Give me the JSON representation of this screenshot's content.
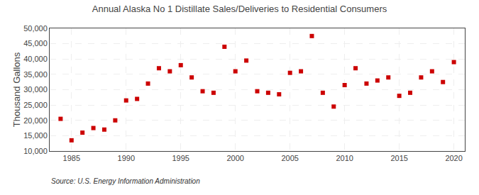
{
  "chart_data": {
    "type": "scatter",
    "title": "Annual Alaska No 1 Distillate Sales/Deliveries to Residential Consumers",
    "ylabel": "Thousand Gallons",
    "annotations": [
      "Source: U.S. Energy Information Administration"
    ],
    "x": [
      1984,
      1985,
      1986,
      1987,
      1988,
      1989,
      1990,
      1991,
      1992,
      1993,
      1994,
      1995,
      1996,
      1997,
      1998,
      1999,
      2000,
      2001,
      2002,
      2003,
      2004,
      2005,
      2006,
      2007,
      2008,
      2009,
      2010,
      2011,
      2012,
      2013,
      2014,
      2015,
      2016,
      2017,
      2018,
      2019,
      2020
    ],
    "values": [
      20500,
      13500,
      16000,
      17500,
      17000,
      20000,
      26500,
      27000,
      32000,
      37000,
      36000,
      38000,
      34000,
      29500,
      29000,
      44000,
      36000,
      39500,
      29500,
      29000,
      28500,
      35500,
      36000,
      47500,
      29000,
      24500,
      31500,
      37000,
      32000,
      33000,
      34000,
      28000,
      29000,
      34000,
      36000,
      32500,
      39000
    ],
    "color": "#cc0000",
    "marker": "square",
    "xlim": [
      1983,
      2021
    ],
    "ylim": [
      10000,
      50000
    ],
    "xticks": [
      1985,
      1990,
      1995,
      2000,
      2005,
      2010,
      2015,
      2020
    ],
    "yticks": [
      {
        "value": 10000,
        "label": "10,000"
      },
      {
        "value": 15000,
        "label": "15,000"
      },
      {
        "value": 20000,
        "label": "20,000"
      },
      {
        "value": 25000,
        "label": "25,000"
      },
      {
        "value": 30000,
        "label": "30,000"
      },
      {
        "value": 35000,
        "label": "35,000"
      },
      {
        "value": 40000,
        "label": "40,000"
      },
      {
        "value": 45000,
        "label": "45,000"
      },
      {
        "value": 50000,
        "label": "50,000"
      }
    ],
    "grid": true
  }
}
